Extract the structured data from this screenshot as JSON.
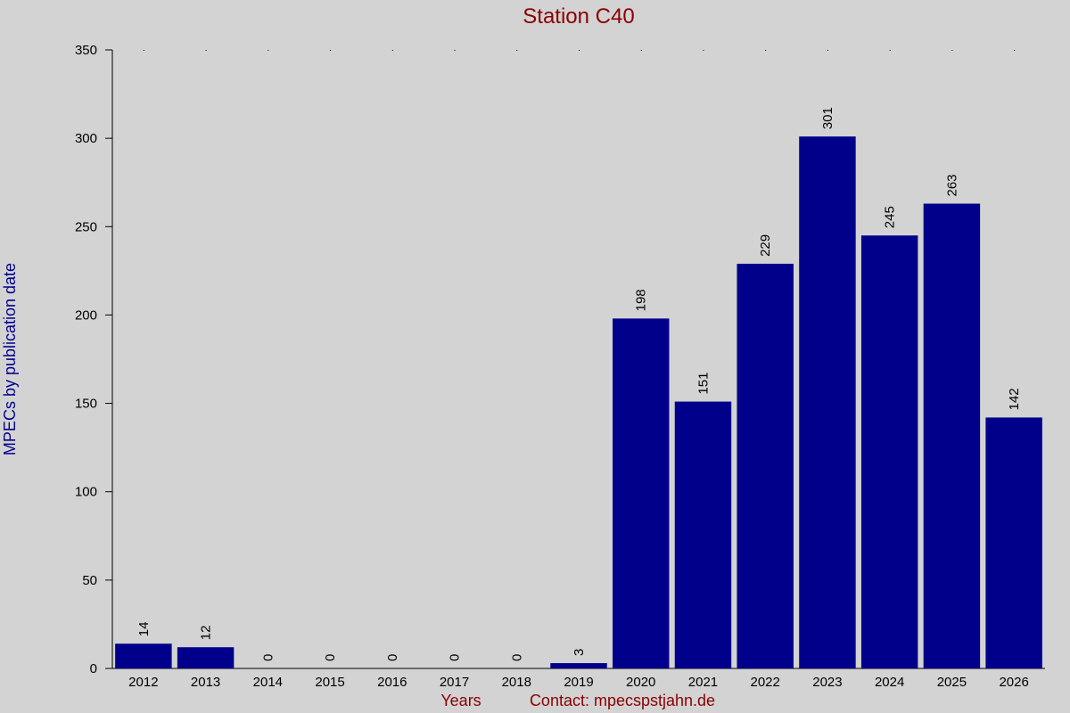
{
  "chart_data": {
    "type": "bar",
    "title": "Station C40",
    "xlabel": "Years",
    "ylabel": "MPECs by publication date",
    "contact": "Contact: mpecspstjahn.de",
    "categories": [
      "2012",
      "2013",
      "2014",
      "2015",
      "2016",
      "2017",
      "2018",
      "2019",
      "2020",
      "2021",
      "2022",
      "2023",
      "2024",
      "2025",
      "2026"
    ],
    "values": [
      14,
      12,
      0,
      0,
      0,
      0,
      0,
      3,
      198,
      151,
      229,
      301,
      245,
      263,
      142
    ],
    "ylim": [
      0,
      350
    ],
    "yticks": [
      0,
      50,
      100,
      150,
      200,
      250,
      300,
      350
    ],
    "bar_color": "#00008b",
    "title_color": "#8b0000",
    "ylabel_color": "#00008b",
    "background": "#d3d3d3",
    "grid": false
  }
}
